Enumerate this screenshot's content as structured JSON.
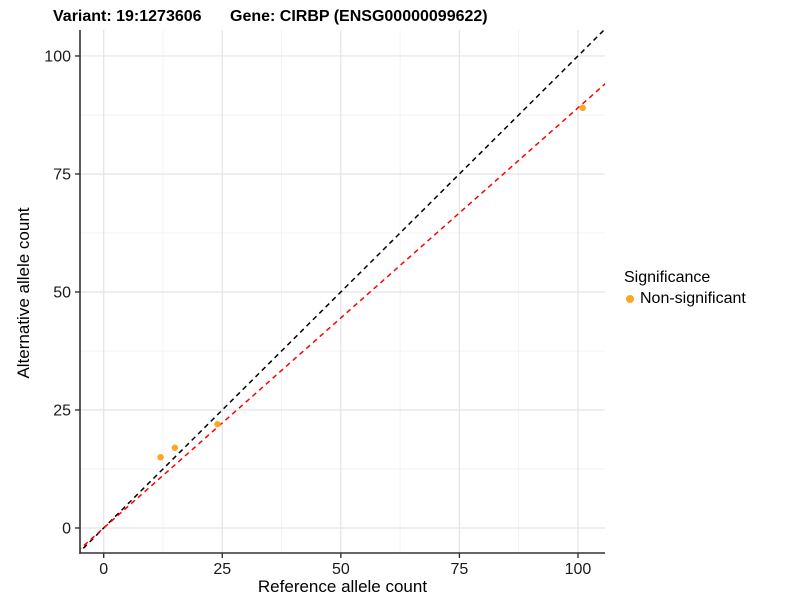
{
  "header": {
    "variant_title": "Variant: 19:1273606",
    "gene_title": "Gene: CIRBP (ENSG00000099622)"
  },
  "chart_data": {
    "type": "scatter",
    "title_left": "Variant: 19:1273606",
    "title_right": "Gene: CIRBP (ENSG00000099622)",
    "xlabel": "Reference allele count",
    "ylabel": "Alternative allele count",
    "xlim": [
      -5,
      105.7
    ],
    "ylim": [
      -5.3,
      105.5
    ],
    "x_ticks": [
      0,
      25,
      50,
      75,
      100
    ],
    "y_ticks": [
      0,
      25,
      50,
      75,
      100
    ],
    "minor_gridlines": [
      12.5,
      37.5,
      62.5,
      87.5
    ],
    "grid": "major+minor",
    "legend": {
      "title": "Significance",
      "position": "right",
      "items": [
        {
          "label": "Non-significant",
          "color": "#FFA520"
        }
      ]
    },
    "series": [
      {
        "name": "Non-significant",
        "color": "#FFA520",
        "points": [
          {
            "x": 12,
            "y": 15
          },
          {
            "x": 15,
            "y": 17
          },
          {
            "x": 24,
            "y": 22
          },
          {
            "x": 101,
            "y": 89
          }
        ]
      }
    ],
    "reference_lines": [
      {
        "name": "identity-line",
        "slope": 1,
        "intercept": 0,
        "color": "#000000",
        "linestyle": "dashed"
      },
      {
        "name": "fit-line",
        "slope": 0.89,
        "intercept": 0,
        "color": "#FF0000",
        "linestyle": "dashed"
      }
    ],
    "colors": {
      "major_grid": "#E4E4E4",
      "minor_grid": "#F3F3F3",
      "axis": "#333333",
      "tick_text": "#1a1a1a"
    }
  }
}
